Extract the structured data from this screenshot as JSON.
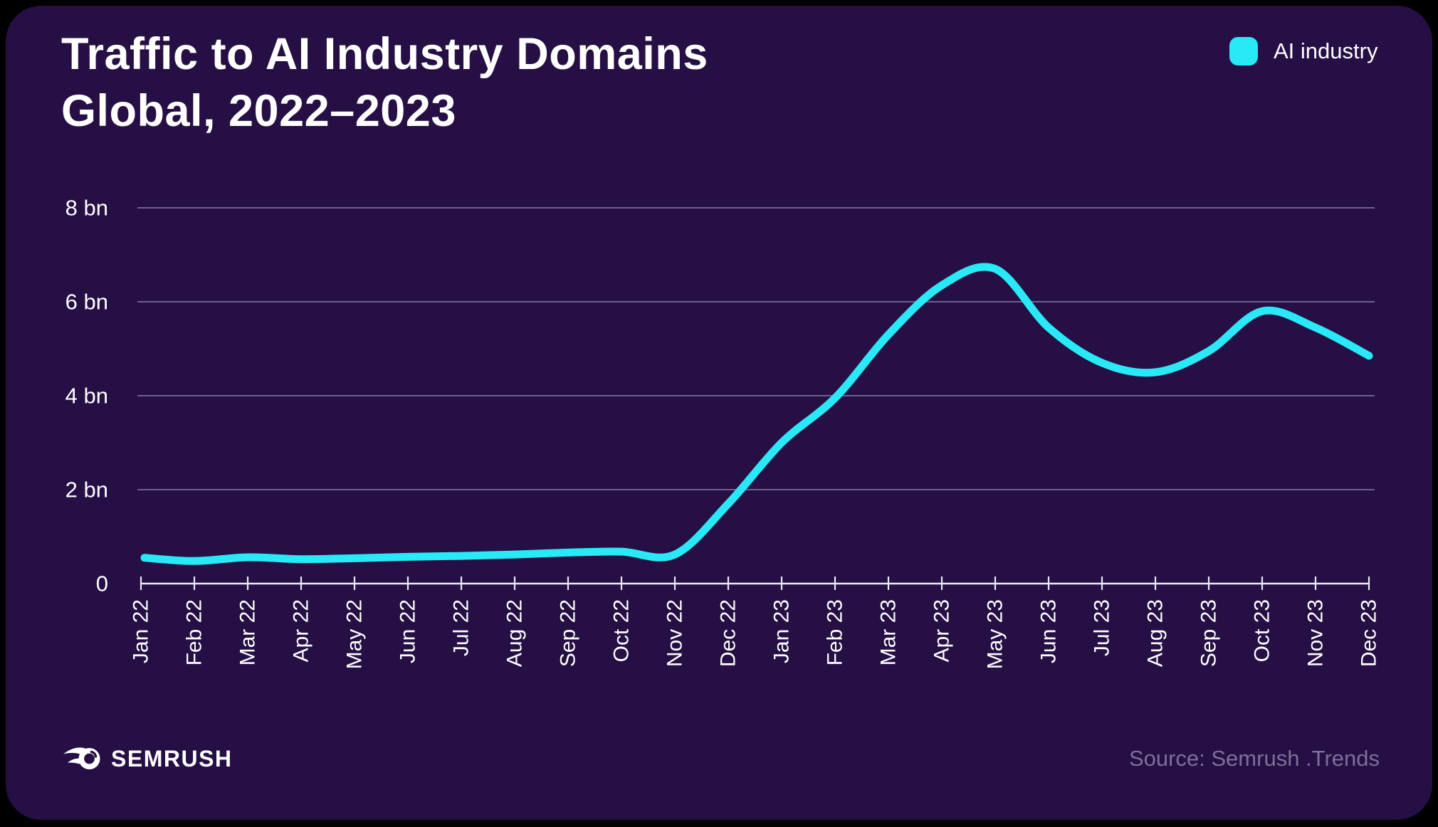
{
  "theme": {
    "page_background": "#000000",
    "card_background": "#250f44",
    "accent": "#28e9f5",
    "grid_color": "rgba(238,234,248,0.5)",
    "axis_color": "#ece9f4",
    "text_color": "#ffffff",
    "muted_text_color": "#7e7099"
  },
  "title": {
    "line1": "Traffic to AI Industry Domains",
    "line2": "Global, 2022–2023"
  },
  "legend": {
    "label": "AI industry",
    "swatch_color": "#28e9f5"
  },
  "footer": {
    "brand": "SEMRUSH",
    "source": "Source: Semrush .Trends"
  },
  "chart_data": {
    "type": "line",
    "title": "Traffic to AI Industry Domains — Global, 2022–2023",
    "xlabel": "",
    "ylabel": "",
    "unit": "bn visits",
    "grid": "horizontal",
    "legend_position": "top-right",
    "ylim": [
      0,
      8
    ],
    "y_ticks": [
      {
        "value": 0,
        "label": "0"
      },
      {
        "value": 2,
        "label": "2 bn"
      },
      {
        "value": 4,
        "label": "4 bn"
      },
      {
        "value": 6,
        "label": "6 bn"
      },
      {
        "value": 8,
        "label": "8 bn"
      }
    ],
    "categories": [
      "Jan 22",
      "Feb 22",
      "Mar 22",
      "Apr 22",
      "May 22",
      "Jun 22",
      "Jul 22",
      "Aug 22",
      "Sep 22",
      "Oct 22",
      "Nov 22",
      "Dec 22",
      "Jan 23",
      "Feb 23",
      "Mar 23",
      "Apr 23",
      "May 23",
      "Jun 23",
      "Jul 23",
      "Aug 23",
      "Sep 23",
      "Oct 23",
      "Nov 23",
      "Dec 23"
    ],
    "series": [
      {
        "name": "AI industry",
        "color": "#28e9f5",
        "values": [
          0.55,
          0.48,
          0.56,
          0.52,
          0.54,
          0.57,
          0.59,
          0.62,
          0.66,
          0.68,
          0.62,
          1.7,
          3.0,
          3.95,
          5.3,
          6.35,
          6.7,
          5.45,
          4.7,
          4.5,
          4.95,
          5.8,
          5.45,
          4.85
        ]
      }
    ]
  }
}
